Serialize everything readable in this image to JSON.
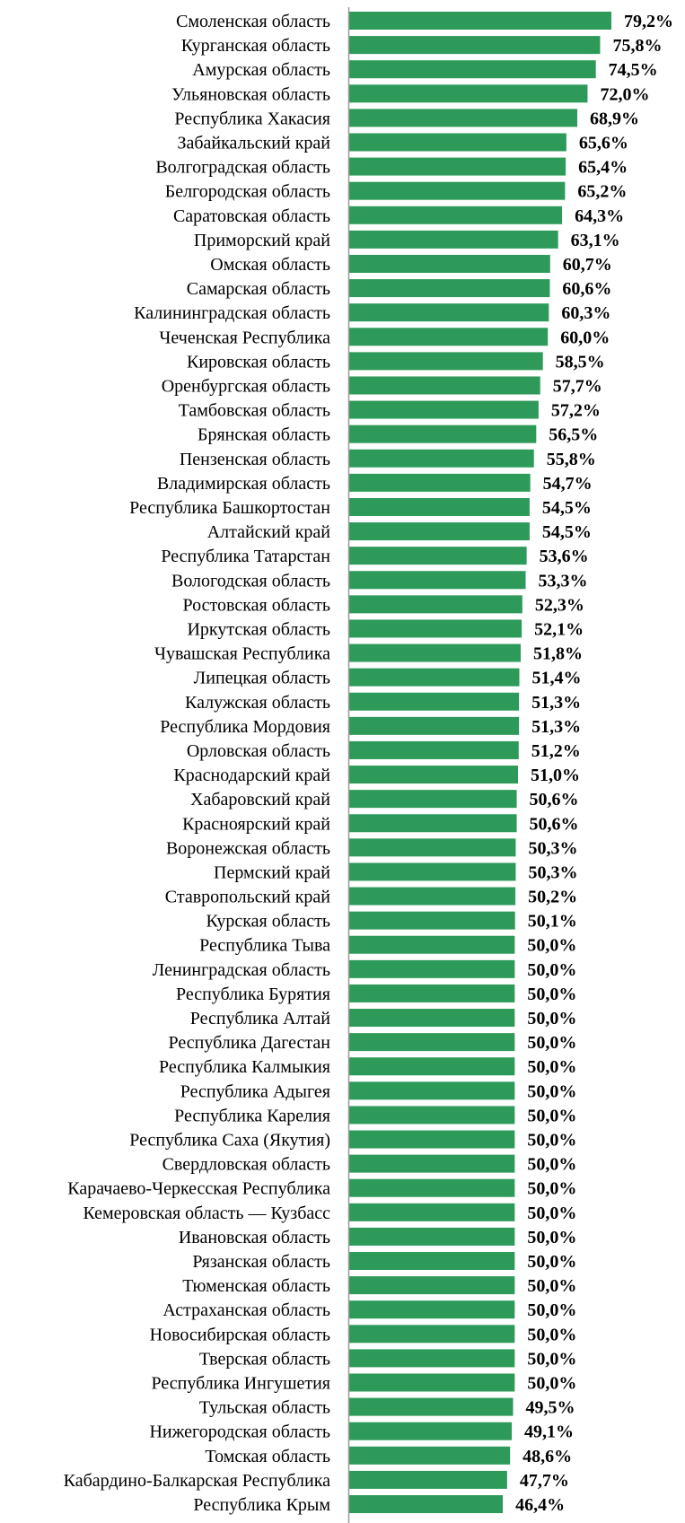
{
  "chart_data": {
    "type": "bar",
    "orientation": "horizontal",
    "categories": [
      "Смоленская область",
      "Курганская область",
      "Амурская область",
      "Ульяновская область",
      "Республика Хакасия",
      "Забайкальский край",
      "Волгоградская область",
      "Белгородская область",
      "Саратовская область",
      "Приморский край",
      "Омская область",
      "Самарская область",
      "Калининградская область",
      "Чеченская Республика",
      "Кировская область",
      "Оренбургская область",
      "Тамбовская область",
      "Брянская область",
      "Пензенская область",
      "Владимирская область",
      "Республика Башкортостан",
      "Алтайский край",
      "Республика Татарстан",
      "Вологодская область",
      "Ростовская область",
      "Иркутская область",
      "Чувашская Республика",
      "Липецкая область",
      "Калужская область",
      "Республика Мордовия",
      "Орловская область",
      "Краснодарский край",
      "Хабаровский край",
      "Красноярский край",
      "Воронежская область",
      "Пермский край",
      "Ставропольский край",
      "Курская область",
      "Республика Тыва",
      "Ленинградская область",
      "Республика Бурятия",
      "Республика Алтай",
      "Республика Дагестан",
      "Республика Калмыкия",
      "Республика Адыгея",
      "Республика Карелия",
      "Республика Саха (Якутия)",
      "Свердловская область",
      "Карачаево-Черкесская Республика",
      "Кемеровская область — Кузбасс",
      "Ивановская область",
      "Рязанская область",
      "Тюменская область",
      "Астраханская область",
      "Новосибирская область",
      "Тверская область",
      "Республика Ингушетия",
      "Тульская область",
      "Нижегородская область",
      "Томская область",
      "Кабардино-Балкарская Республика",
      "Республика Крым"
    ],
    "values": [
      79.2,
      75.8,
      74.5,
      72.0,
      68.9,
      65.6,
      65.4,
      65.2,
      64.3,
      63.1,
      60.7,
      60.6,
      60.3,
      60.0,
      58.5,
      57.7,
      57.2,
      56.5,
      55.8,
      54.7,
      54.5,
      54.5,
      53.6,
      53.3,
      52.3,
      52.1,
      51.8,
      51.4,
      51.3,
      51.3,
      51.2,
      51.0,
      50.6,
      50.6,
      50.3,
      50.3,
      50.2,
      50.1,
      50.0,
      50.0,
      50.0,
      50.0,
      50.0,
      50.0,
      50.0,
      50.0,
      50.0,
      50.0,
      50.0,
      50.0,
      50.0,
      50.0,
      50.0,
      50.0,
      50.0,
      50.0,
      50.0,
      49.5,
      49.1,
      48.6,
      47.7,
      46.4
    ],
    "value_labels": [
      "79,2%",
      "75,8%",
      "74,5%",
      "72,0%",
      "68,9%",
      "65,6%",
      "65,4%",
      "65,2%",
      "64,3%",
      "63,1%",
      "60,7%",
      "60,6%",
      "60,3%",
      "60,0%",
      "58,5%",
      "57,7%",
      "57,2%",
      "56,5%",
      "55,8%",
      "54,7%",
      "54,5%",
      "54,5%",
      "53,6%",
      "53,3%",
      "52,3%",
      "52,1%",
      "51,8%",
      "51,4%",
      "51,3%",
      "51,3%",
      "51,2%",
      "51,0%",
      "50,6%",
      "50,6%",
      "50,3%",
      "50,3%",
      "50,2%",
      "50,1%",
      "50,0%",
      "50,0%",
      "50,0%",
      "50,0%",
      "50,0%",
      "50,0%",
      "50,0%",
      "50,0%",
      "50,0%",
      "50,0%",
      "50,0%",
      "50,0%",
      "50,0%",
      "50,0%",
      "50,0%",
      "50,0%",
      "50,0%",
      "50,0%",
      "50,0%",
      "49,5%",
      "49,1%",
      "48,6%",
      "47,7%",
      "46,4%"
    ],
    "xlim": [
      0,
      79.2
    ],
    "title": "",
    "xlabel": "",
    "ylabel": "",
    "grid": false,
    "legend": "none",
    "bar_color": "#2e9a5a",
    "axis_color": "#999999"
  }
}
